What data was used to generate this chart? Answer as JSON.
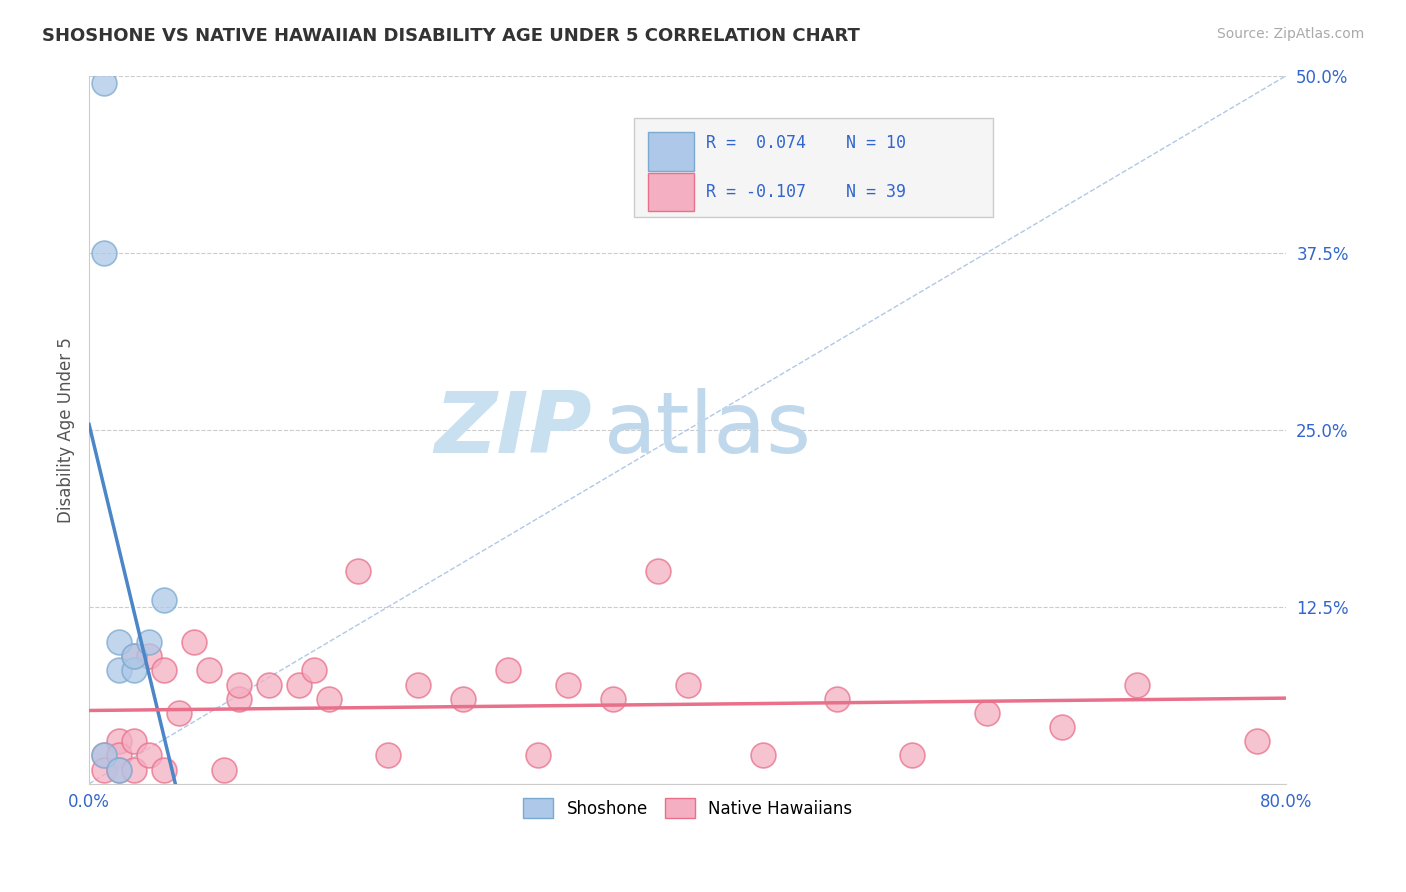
{
  "title": "SHOSHONE VS NATIVE HAWAIIAN DISABILITY AGE UNDER 5 CORRELATION CHART",
  "source_text": "Source: ZipAtlas.com",
  "ylabel": "Disability Age Under 5",
  "xlim": [
    0.0,
    0.8
  ],
  "ylim": [
    0.0,
    0.5
  ],
  "ytick_values": [
    0.0,
    0.125,
    0.25,
    0.375,
    0.5
  ],
  "ytick_labels": [
    "",
    "12.5%",
    "25.0%",
    "37.5%",
    "50.0%"
  ],
  "legend_r1": "R =  0.074",
  "legend_n1": "N = 10",
  "legend_r2": "R = -0.107",
  "legend_n2": "N = 39",
  "shoshone_color": "#adc8e8",
  "shoshone_edge": "#7aaad0",
  "native_hawaiian_color": "#f4afc2",
  "native_hawaiian_edge": "#e8708a",
  "trend_blue_color": "#4a86c8",
  "trend_pink_color": "#e8708a",
  "ref_line_color": "#b0c8e8",
  "grid_color": "#cccccc",
  "watermark_zip_color": "#c8e0f0",
  "watermark_atlas_color": "#c0d8ec",
  "background_color": "#ffffff",
  "shoshone_points_x": [
    0.01,
    0.01,
    0.02,
    0.02,
    0.03,
    0.03,
    0.04,
    0.05,
    0.01,
    0.02
  ],
  "shoshone_points_y": [
    0.495,
    0.375,
    0.1,
    0.08,
    0.08,
    0.09,
    0.1,
    0.13,
    0.02,
    0.01
  ],
  "native_hawaiian_points_x": [
    0.01,
    0.01,
    0.02,
    0.02,
    0.02,
    0.03,
    0.03,
    0.03,
    0.04,
    0.04,
    0.05,
    0.05,
    0.06,
    0.07,
    0.08,
    0.09,
    0.1,
    0.1,
    0.12,
    0.14,
    0.15,
    0.16,
    0.18,
    0.2,
    0.22,
    0.25,
    0.28,
    0.3,
    0.32,
    0.35,
    0.38,
    0.4,
    0.45,
    0.5,
    0.55,
    0.6,
    0.65,
    0.7,
    0.78
  ],
  "native_hawaiian_points_y": [
    0.02,
    0.01,
    0.03,
    0.02,
    0.01,
    0.09,
    0.03,
    0.01,
    0.09,
    0.02,
    0.08,
    0.01,
    0.05,
    0.1,
    0.08,
    0.01,
    0.06,
    0.07,
    0.07,
    0.07,
    0.08,
    0.06,
    0.15,
    0.02,
    0.07,
    0.06,
    0.08,
    0.02,
    0.07,
    0.06,
    0.15,
    0.07,
    0.02,
    0.06,
    0.02,
    0.05,
    0.04,
    0.07,
    0.03
  ]
}
